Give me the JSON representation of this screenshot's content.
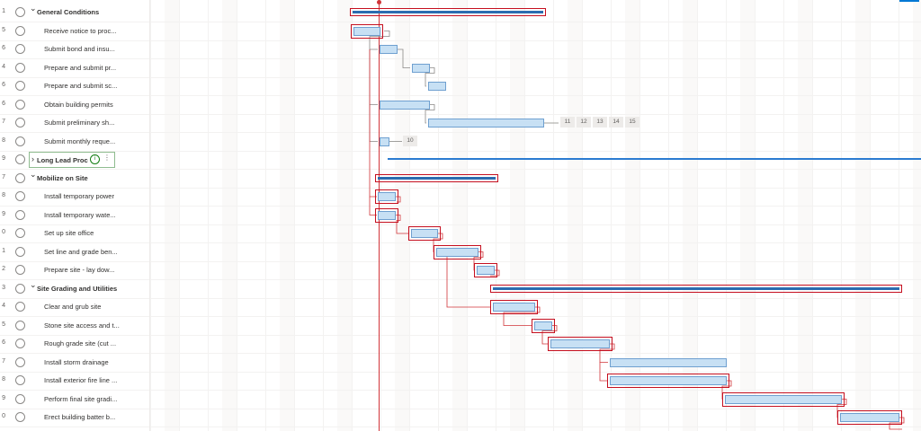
{
  "rows": [
    {
      "num": "1",
      "title": "General Conditions",
      "summary": true,
      "expanded": true
    },
    {
      "num": "5",
      "title": "Receive notice to proc...",
      "summary": false
    },
    {
      "num": "6",
      "title": "Submit bond and insu...",
      "summary": false
    },
    {
      "num": "4",
      "title": "Prepare and submit pr...",
      "summary": false
    },
    {
      "num": "6",
      "title": "Prepare and submit sc...",
      "summary": false
    },
    {
      "num": "6",
      "title": "Obtain building permits",
      "summary": false
    },
    {
      "num": "7",
      "title": "Submit preliminary sh...",
      "summary": false
    },
    {
      "num": "8",
      "title": "Submit monthly reque...",
      "summary": false
    },
    {
      "num": "9",
      "title": "Long Lead Proc",
      "summary": true,
      "expanded": false,
      "editing": true
    },
    {
      "num": "7",
      "title": "Mobilize on Site",
      "summary": true,
      "expanded": true
    },
    {
      "num": "8",
      "title": "Install temporary power",
      "summary": false
    },
    {
      "num": "9",
      "title": "Install temporary wate...",
      "summary": false
    },
    {
      "num": "0",
      "title": "Set up site office",
      "summary": false
    },
    {
      "num": "1",
      "title": "Set line and grade ben...",
      "summary": false
    },
    {
      "num": "2",
      "title": "Prepare site - lay dow...",
      "summary": false
    },
    {
      "num": "3",
      "title": "Site Grading and Utilities",
      "summary": true,
      "expanded": true
    },
    {
      "num": "4",
      "title": "Clear and grub site",
      "summary": false
    },
    {
      "num": "5",
      "title": "Stone site access and t...",
      "summary": false
    },
    {
      "num": "6",
      "title": "Rough grade site (cut ...",
      "summary": false
    },
    {
      "num": "7",
      "title": "Install storm drainage",
      "summary": false
    },
    {
      "num": "8",
      "title": "Install exterior fire line ...",
      "summary": false
    },
    {
      "num": "9",
      "title": "Perform final site gradi...",
      "summary": false
    },
    {
      "num": "0",
      "title": "Erect building batter b...",
      "summary": false
    }
  ],
  "overflow_chips": [
    "11",
    "12",
    "13",
    "14",
    "15"
  ],
  "single_chip": "10",
  "edit_icons": {
    "info": "i",
    "more": "⋮"
  },
  "colors": {
    "bar_fill": "#c7e0f4",
    "bar_border": "#6fa0d0",
    "critical": "#c50f1f",
    "summary": "#2b6cb0",
    "today": "#d13438"
  }
}
